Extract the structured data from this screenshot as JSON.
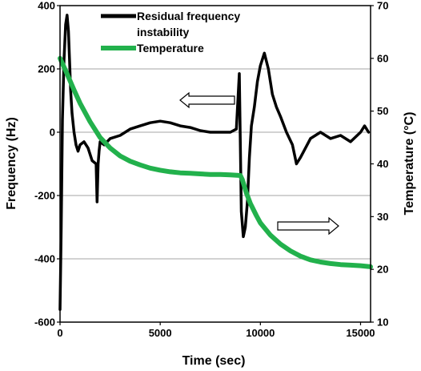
{
  "chart_data": {
    "type": "line",
    "xlabel": "Time (sec)",
    "ylabel_left": "Frequency (Hz)",
    "ylabel_right": "Temperature (°C)",
    "xlim": [
      0,
      15500
    ],
    "ylim_left": [
      -600,
      400
    ],
    "ylim_right": [
      10,
      70
    ],
    "x_ticks": [
      "0",
      "5000",
      "10000",
      "15000"
    ],
    "x_tick_values": [
      0,
      5000,
      10000,
      15000
    ],
    "y_left_ticks": [
      "400",
      "200",
      "0",
      "-200",
      "-400",
      "-600"
    ],
    "y_left_tick_values": [
      400,
      200,
      0,
      -200,
      -400,
      -600
    ],
    "y_right_ticks": [
      "70",
      "60",
      "50",
      "40",
      "30",
      "20",
      "10"
    ],
    "y_right_tick_values": [
      70,
      60,
      50,
      40,
      30,
      20,
      10
    ],
    "grid": true,
    "legend_position": "top-left",
    "legend": {
      "line1": "Residual frequency",
      "line2": "instability",
      "temp": "Temperature"
    },
    "series": [
      {
        "name": "Residual frequency instability",
        "axis": "left",
        "color": "#000000",
        "x": [
          0,
          60,
          120,
          200,
          280,
          350,
          420,
          480,
          530,
          600,
          700,
          800,
          900,
          1000,
          1200,
          1400,
          1600,
          1800,
          1850,
          1900,
          1950,
          2000,
          2200,
          2500,
          3000,
          3500,
          4000,
          4500,
          5000,
          5500,
          6000,
          6500,
          7000,
          7500,
          8000,
          8500,
          8800,
          8950,
          9050,
          9150,
          9250,
          9350,
          9450,
          9550,
          9700,
          9850,
          10000,
          10200,
          10400,
          10600,
          10800,
          11000,
          11300,
          11600,
          11800,
          12000,
          12500,
          13000,
          13500,
          14000,
          14500,
          15000,
          15200,
          15400
        ],
        "values": [
          -560,
          -300,
          40,
          230,
          340,
          370,
          320,
          220,
          130,
          60,
          0,
          -40,
          -60,
          -40,
          -30,
          -50,
          -90,
          -100,
          -220,
          -100,
          -60,
          -30,
          -40,
          -20,
          -10,
          10,
          20,
          30,
          35,
          30,
          20,
          15,
          5,
          0,
          0,
          0,
          10,
          185,
          -250,
          -330,
          -300,
          -220,
          -80,
          20,
          80,
          160,
          210,
          250,
          200,
          120,
          80,
          50,
          0,
          -40,
          -100,
          -80,
          -20,
          0,
          -20,
          -10,
          -30,
          0,
          20,
          0
        ]
      },
      {
        "name": "Temperature",
        "axis": "right",
        "color": "#22b14c",
        "x": [
          0,
          300,
          700,
          1000,
          1500,
          2000,
          2500,
          3000,
          3500,
          4000,
          4500,
          5000,
          5500,
          6000,
          6500,
          7000,
          7500,
          8000,
          8500,
          9000,
          9100,
          9300,
          9500,
          9800,
          10000,
          10500,
          11000,
          11500,
          12000,
          12500,
          13000,
          13500,
          14000,
          14500,
          15000,
          15500
        ],
        "values": [
          60,
          57.5,
          54,
          51.5,
          48,
          45,
          43,
          41.5,
          40.5,
          39.8,
          39.2,
          38.8,
          38.5,
          38.3,
          38.2,
          38.1,
          38.0,
          38.0,
          37.9,
          37.8,
          37.0,
          34.5,
          32.5,
          30.2,
          28.8,
          26.5,
          24.8,
          23.5,
          22.5,
          21.8,
          21.4,
          21.1,
          20.9,
          20.8,
          20.7,
          20.5
        ]
      }
    ]
  }
}
